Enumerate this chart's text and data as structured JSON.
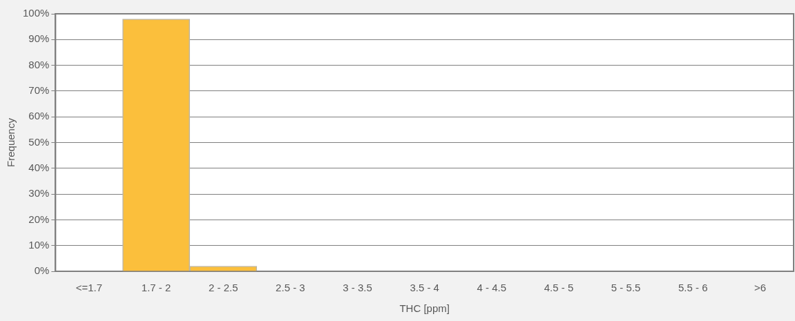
{
  "chart_data": {
    "type": "bar",
    "xlabel": "THC [ppm]",
    "ylabel": "Frequency",
    "categories": [
      "<=1.7",
      "1.7 - 2",
      "2 - 2.5",
      "2.5 - 3",
      "3 - 3.5",
      "3.5 - 4",
      "4 - 4.5",
      "4.5 - 5",
      "5 - 5.5",
      "5.5 - 6",
      ">6"
    ],
    "values": [
      0,
      98,
      2,
      0,
      0,
      0,
      0,
      0,
      0,
      0,
      0
    ],
    "color": "#fbbf3c",
    "ylim": [
      0,
      100
    ],
    "yticks": [
      {
        "value": 0,
        "label": "0%"
      },
      {
        "value": 10,
        "label": "10%"
      },
      {
        "value": 20,
        "label": "20%"
      },
      {
        "value": 30,
        "label": "30%"
      },
      {
        "value": 40,
        "label": "40%"
      },
      {
        "value": 50,
        "label": "50%"
      },
      {
        "value": 60,
        "label": "60%"
      },
      {
        "value": 70,
        "label": "70%"
      },
      {
        "value": 80,
        "label": "80%"
      },
      {
        "value": 90,
        "label": "90%"
      },
      {
        "value": 100,
        "label": "100%"
      }
    ],
    "grid": "y",
    "legend": false
  }
}
